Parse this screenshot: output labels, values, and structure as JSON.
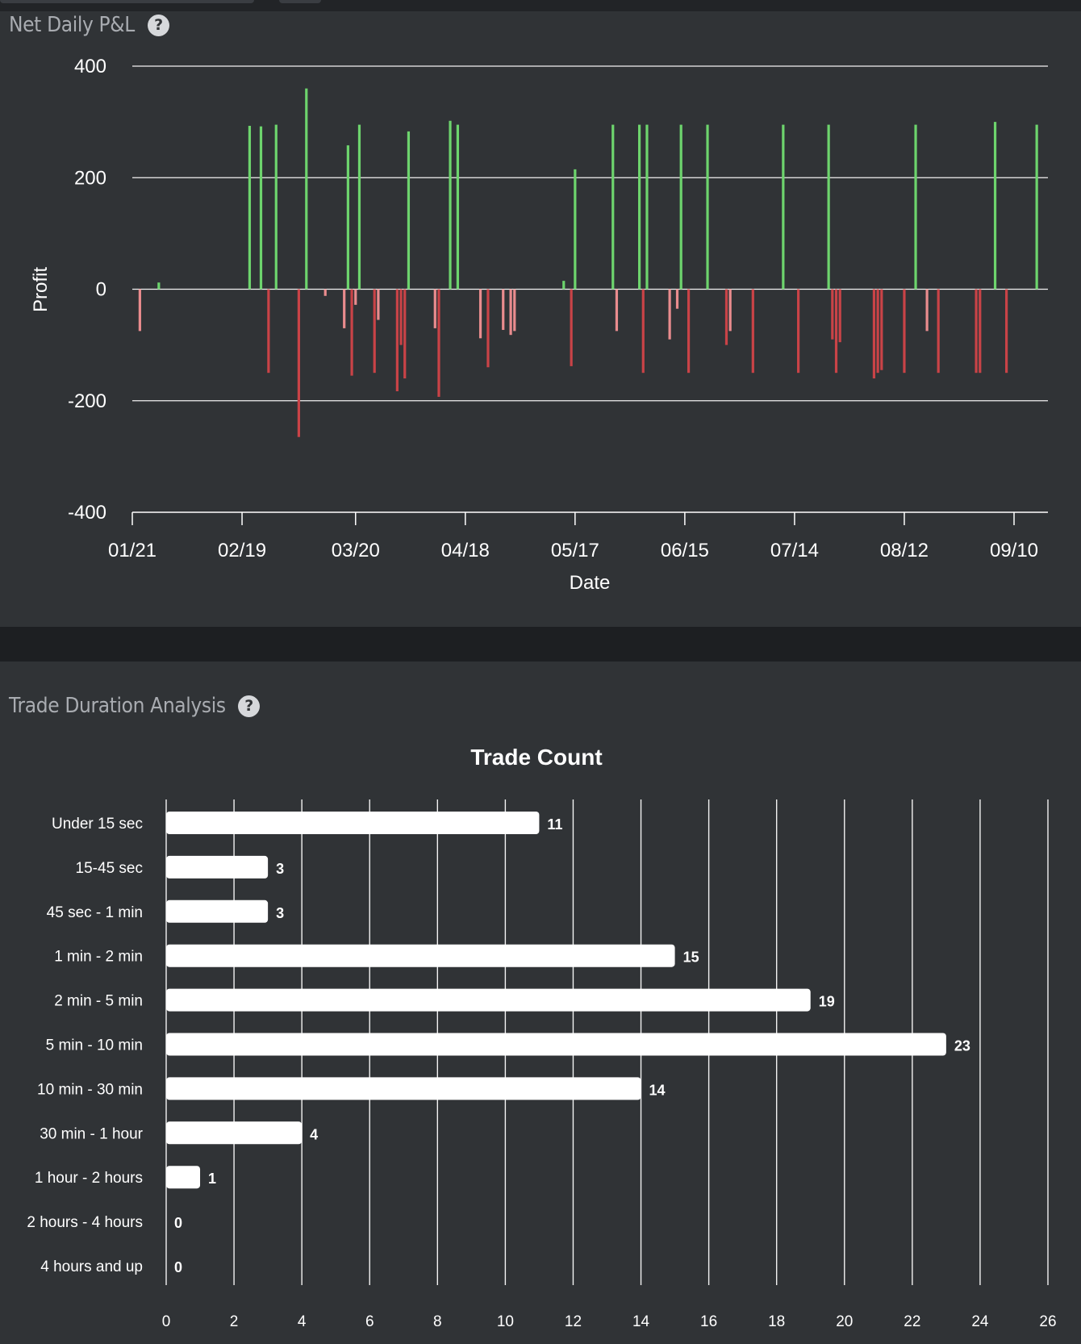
{
  "pnl_panel": {
    "title": "Net Daily P&L",
    "help_icon": "question-circle-icon"
  },
  "duration_panel": {
    "title": "Trade Duration Analysis",
    "help_icon": "question-circle-icon"
  },
  "colors": {
    "page_bg": "#1d1f22",
    "panel_bg": "#303336",
    "profit": "#6dd46d",
    "loss_dark": "#c94347",
    "loss_light": "#e98c8e",
    "bar": "#ffffff"
  },
  "chart_data": [
    {
      "type": "bar",
      "xlabel": "Date",
      "ylabel": "Profit",
      "ylim": [
        -400,
        400
      ],
      "yticks": [
        -400,
        -200,
        0,
        200,
        400
      ],
      "xticks": [
        "01/21",
        "02/19",
        "03/20",
        "04/18",
        "05/17",
        "06/15",
        "07/14",
        "08/12",
        "09/10"
      ],
      "grid": true,
      "series": [
        {
          "values": [
            {
              "x": "01/23",
              "y": -75,
              "tone": "light"
            },
            {
              "x": "01/28",
              "y": 12,
              "tone": "profit"
            },
            {
              "x": "02/21",
              "y": 293,
              "tone": "profit"
            },
            {
              "x": "02/24",
              "y": 292,
              "tone": "profit"
            },
            {
              "x": "02/26",
              "y": -150,
              "tone": "dark"
            },
            {
              "x": "02/28",
              "y": 295,
              "tone": "profit"
            },
            {
              "x": "03/05",
              "y": -265,
              "tone": "dark"
            },
            {
              "x": "03/07",
              "y": 360,
              "tone": "profit"
            },
            {
              "x": "03/12",
              "y": -12,
              "tone": "light"
            },
            {
              "x": "03/17",
              "y": -70,
              "tone": "light"
            },
            {
              "x": "03/18",
              "y": 258,
              "tone": "profit"
            },
            {
              "x": "03/19",
              "y": -155,
              "tone": "dark"
            },
            {
              "x": "03/20",
              "y": -28,
              "tone": "light"
            },
            {
              "x": "03/21",
              "y": 295,
              "tone": "profit"
            },
            {
              "x": "03/25",
              "y": -150,
              "tone": "dark"
            },
            {
              "x": "03/26",
              "y": -55,
              "tone": "light"
            },
            {
              "x": "03/31",
              "y": -183,
              "tone": "dark"
            },
            {
              "x": "04/01",
              "y": -100,
              "tone": "dark"
            },
            {
              "x": "04/02",
              "y": -160,
              "tone": "dark"
            },
            {
              "x": "04/03",
              "y": 283,
              "tone": "profit"
            },
            {
              "x": "04/10",
              "y": -70,
              "tone": "light"
            },
            {
              "x": "04/11",
              "y": -193,
              "tone": "dark"
            },
            {
              "x": "04/14",
              "y": 302,
              "tone": "profit"
            },
            {
              "x": "04/16",
              "y": 295,
              "tone": "profit"
            },
            {
              "x": "04/22",
              "y": -88,
              "tone": "light"
            },
            {
              "x": "04/24",
              "y": -140,
              "tone": "dark"
            },
            {
              "x": "04/28",
              "y": -73,
              "tone": "light"
            },
            {
              "x": "04/30",
              "y": -82,
              "tone": "light"
            },
            {
              "x": "05/01",
              "y": -75,
              "tone": "light"
            },
            {
              "x": "05/14",
              "y": 15,
              "tone": "profit"
            },
            {
              "x": "05/16",
              "y": -138,
              "tone": "dark"
            },
            {
              "x": "05/17",
              "y": 215,
              "tone": "profit"
            },
            {
              "x": "05/27",
              "y": 295,
              "tone": "profit"
            },
            {
              "x": "05/28",
              "y": -75,
              "tone": "light"
            },
            {
              "x": "06/03",
              "y": 295,
              "tone": "profit"
            },
            {
              "x": "06/04",
              "y": -150,
              "tone": "dark"
            },
            {
              "x": "06/05",
              "y": 295,
              "tone": "profit"
            },
            {
              "x": "06/11",
              "y": -90,
              "tone": "light"
            },
            {
              "x": "06/13",
              "y": -35,
              "tone": "light"
            },
            {
              "x": "06/14",
              "y": 295,
              "tone": "profit"
            },
            {
              "x": "06/16",
              "y": -150,
              "tone": "dark"
            },
            {
              "x": "06/21",
              "y": 295,
              "tone": "profit"
            },
            {
              "x": "06/26",
              "y": -100,
              "tone": "dark"
            },
            {
              "x": "06/27",
              "y": -75,
              "tone": "light"
            },
            {
              "x": "07/03",
              "y": -150,
              "tone": "dark"
            },
            {
              "x": "07/11",
              "y": 295,
              "tone": "profit"
            },
            {
              "x": "07/15",
              "y": -150,
              "tone": "dark"
            },
            {
              "x": "07/23",
              "y": 295,
              "tone": "profit"
            },
            {
              "x": "07/24",
              "y": -90,
              "tone": "dark"
            },
            {
              "x": "07/25",
              "y": -150,
              "tone": "dark"
            },
            {
              "x": "07/26",
              "y": -95,
              "tone": "dark"
            },
            {
              "x": "08/04",
              "y": -160,
              "tone": "dark"
            },
            {
              "x": "08/05",
              "y": -150,
              "tone": "dark"
            },
            {
              "x": "08/06",
              "y": -145,
              "tone": "dark"
            },
            {
              "x": "08/12",
              "y": -150,
              "tone": "dark"
            },
            {
              "x": "08/15",
              "y": 295,
              "tone": "profit"
            },
            {
              "x": "08/18",
              "y": -75,
              "tone": "light"
            },
            {
              "x": "08/21",
              "y": -150,
              "tone": "dark"
            },
            {
              "x": "08/31",
              "y": -150,
              "tone": "dark"
            },
            {
              "x": "09/01",
              "y": -150,
              "tone": "dark"
            },
            {
              "x": "09/05",
              "y": 300,
              "tone": "profit"
            },
            {
              "x": "09/08",
              "y": -150,
              "tone": "dark"
            },
            {
              "x": "09/16",
              "y": 295,
              "tone": "profit"
            }
          ]
        }
      ]
    },
    {
      "type": "bar",
      "orientation": "horizontal",
      "title": "Trade Count",
      "categories": [
        "Under 15 sec",
        "15-45 sec",
        "45 sec - 1 min",
        "1 min - 2 min",
        "2 min - 5 min",
        "5 min - 10 min",
        "10 min - 30 min",
        "30 min - 1 hour",
        "1 hour - 2 hours",
        "2 hours - 4 hours",
        "4 hours and up"
      ],
      "values": [
        11,
        3,
        3,
        15,
        19,
        23,
        14,
        4,
        1,
        0,
        0
      ],
      "xlim": [
        0,
        26
      ],
      "xticks": [
        0,
        2,
        4,
        6,
        8,
        10,
        12,
        14,
        16,
        18,
        20,
        22,
        24,
        26
      ],
      "grid": true,
      "data_labels": true
    }
  ]
}
